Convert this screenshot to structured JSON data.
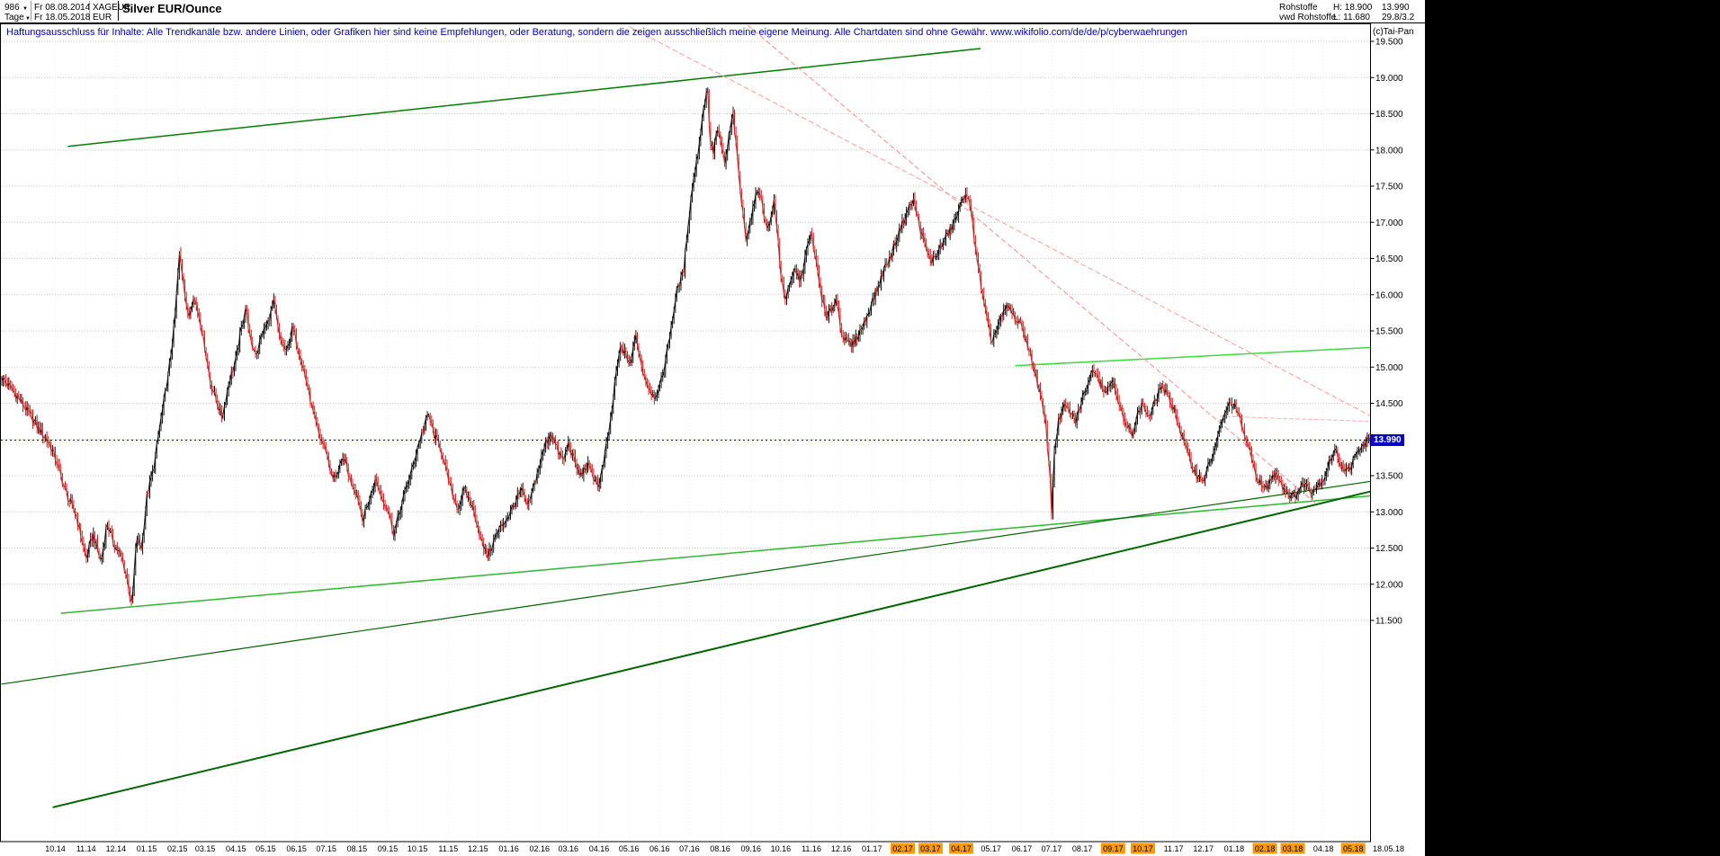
{
  "header": {
    "bars_count": "986",
    "start_date": "Fr 08.08.2014",
    "symbol": "XAGEUR",
    "title": "Silver EUR/Ounce",
    "period": "Tage",
    "end_date": "Fr 18.05.2018",
    "currency": "EUR",
    "quote": {
      "category": "Rohstoffe",
      "source": "vwd Rohstoffe",
      "high": "H: 18.900",
      "low": "L: 11.680",
      "last": "13.990",
      "extra": "29.8/3.2"
    }
  },
  "icons": {
    "dropdown": "▼"
  },
  "disclaimer": "Haftungsausschluss für Inhalte: Alle Trendkanäle bzw. andere Linien, oder Grafiken hier sind keine Empfehlungen, oder Beratung, sondern die zeigen ausschließlich meine eigene Meinung. Alle Chartdaten sind ohne Gewähr.  www.wikifolio.com/de/de/p/cyberwaehrungen",
  "copyright": "(c)Tai-Pan",
  "last_date_label": "18.05.18",
  "chart_data": {
    "type": "line",
    "subtype": "daily-ohlc-bars",
    "title": "Silver EUR/Ounce",
    "period": "Tage",
    "date_range": [
      "Fr 08.08.2014",
      "Fr 18.05.2018"
    ],
    "high": 18.9,
    "low": 11.68,
    "last": 13.99,
    "x_unit": "days since 2014-08-08",
    "ylabel": "EUR",
    "grid": true,
    "bar_colors": {
      "up": "#111111",
      "down": "#cc2222"
    },
    "y_axis": {
      "ticks": [
        {
          "label": "19.500",
          "value": 19.5
        },
        {
          "label": "19.000",
          "value": 19.0
        },
        {
          "label": "18.500",
          "value": 18.5
        },
        {
          "label": "18.000",
          "value": 18.0
        },
        {
          "label": "17.500",
          "value": 17.5
        },
        {
          "label": "17.000",
          "value": 17.0
        },
        {
          "label": "16.500",
          "value": 16.5
        },
        {
          "label": "16.000",
          "value": 16.0
        },
        {
          "label": "15.500",
          "value": 15.5
        },
        {
          "label": "15.000",
          "value": 15.0
        },
        {
          "label": "14.500",
          "value": 14.5
        },
        {
          "label": "14.000",
          "value": 14.0
        },
        {
          "label": "13.500",
          "value": 13.5
        },
        {
          "label": "13.000",
          "value": 13.0
        },
        {
          "label": "12.500",
          "value": 12.5
        },
        {
          "label": "12.000",
          "value": 12.0
        },
        {
          "label": "11.500",
          "value": 11.5
        }
      ]
    },
    "x_axis": {
      "highlight_color": "#ff9900",
      "months": [
        {
          "label": "10.14",
          "day": 54
        },
        {
          "label": "11.14",
          "day": 85
        },
        {
          "label": "12.14",
          "day": 115
        },
        {
          "label": "01.15",
          "day": 146
        },
        {
          "label": "02.15",
          "day": 177
        },
        {
          "label": "03.15",
          "day": 205
        },
        {
          "label": "04.15",
          "day": 236
        },
        {
          "label": "05.15",
          "day": 266
        },
        {
          "label": "06.15",
          "day": 297
        },
        {
          "label": "07.15",
          "day": 327
        },
        {
          "label": "08.15",
          "day": 358
        },
        {
          "label": "09.15",
          "day": 389
        },
        {
          "label": "10.15",
          "day": 419
        },
        {
          "label": "11.15",
          "day": 450
        },
        {
          "label": "12.15",
          "day": 480
        },
        {
          "label": "01.16",
          "day": 511
        },
        {
          "label": "02.16",
          "day": 542
        },
        {
          "label": "03.16",
          "day": 571
        },
        {
          "label": "04.16",
          "day": 602
        },
        {
          "label": "05.16",
          "day": 632
        },
        {
          "label": "06.16",
          "day": 663
        },
        {
          "label": "07.16",
          "day": 693
        },
        {
          "label": "08.16",
          "day": 724
        },
        {
          "label": "09.16",
          "day": 755
        },
        {
          "label": "10.16",
          "day": 785
        },
        {
          "label": "11.16",
          "day": 816
        },
        {
          "label": "12.16",
          "day": 846
        },
        {
          "label": "01.17",
          "day": 877
        },
        {
          "label": "02.17",
          "day": 908,
          "highlight": true
        },
        {
          "label": "03.17",
          "day": 936,
          "highlight": true
        },
        {
          "label": "04.17",
          "day": 967,
          "highlight": true
        },
        {
          "label": "05.17",
          "day": 997
        },
        {
          "label": "06.17",
          "day": 1028
        },
        {
          "label": "07.17",
          "day": 1058
        },
        {
          "label": "08.17",
          "day": 1089
        },
        {
          "label": "09.17",
          "day": 1120,
          "highlight": true
        },
        {
          "label": "10.17",
          "day": 1150,
          "highlight": true
        },
        {
          "label": "11.17",
          "day": 1181
        },
        {
          "label": "12.17",
          "day": 1211
        },
        {
          "label": "01.18",
          "day": 1242
        },
        {
          "label": "02.18",
          "day": 1273,
          "highlight": true
        },
        {
          "label": "03.18",
          "day": 1301,
          "highlight": true
        },
        {
          "label": "04.18",
          "day": 1332
        },
        {
          "label": "05.18",
          "day": 1362,
          "highlight": true
        }
      ]
    },
    "hline": {
      "price": 13.99,
      "label": "13.990",
      "color": "#0000cc"
    },
    "trendlines": [
      {
        "name": "upper-channel-trendline",
        "from": [
          67,
          18.05
        ],
        "to": [
          986,
          19.4
        ],
        "color": "#008000",
        "width": 1.5
      },
      {
        "name": "lower-channel-trendline",
        "from": [
          60,
          11.6
        ],
        "to": [
          1379,
          13.22
        ],
        "color": "#2eb82e",
        "width": 1.5
      },
      {
        "name": "long-support-trendline",
        "from": [
          52,
          8.92
        ],
        "to": [
          1379,
          13.28
        ],
        "color": "#006600",
        "width": 2
      },
      {
        "name": "secondary-support-trendline",
        "from": [
          0,
          10.62
        ],
        "to": [
          1379,
          13.42
        ],
        "color": "#006600",
        "width": 1.2
      },
      {
        "name": "right-resistance-trendline",
        "from": [
          1022,
          15.02
        ],
        "to": [
          1379,
          15.27
        ],
        "color": "#3ddc3d",
        "width": 1.5
      },
      {
        "name": "downtrend-dashed-line-1",
        "from": [
          633,
          19.7
        ],
        "to": [
          1379,
          14.33
        ],
        "color": "#ff9a9a",
        "width": 1,
        "dash": "5 4"
      },
      {
        "name": "downtrend-dashed-line-2",
        "from": [
          752,
          19.72
        ],
        "to": [
          1325,
          13.11
        ],
        "color": "#ff8a8a",
        "width": 1,
        "dash": "5 4"
      },
      {
        "name": "short-dashed-resistance",
        "from": [
          1228,
          14.32
        ],
        "to": [
          1379,
          14.25
        ],
        "color": "#ffb0b0",
        "width": 1,
        "dash": "4 3"
      }
    ],
    "path": [
      [
        0,
        14.85
      ],
      [
        10,
        14.7
      ],
      [
        18,
        14.55
      ],
      [
        28,
        14.35
      ],
      [
        37,
        14.15
      ],
      [
        48,
        13.95
      ],
      [
        55,
        13.7
      ],
      [
        65,
        13.25
      ],
      [
        75,
        12.95
      ],
      [
        85,
        12.35
      ],
      [
        92,
        12.7
      ],
      [
        100,
        12.3
      ],
      [
        106,
        12.85
      ],
      [
        113,
        12.55
      ],
      [
        120,
        12.4
      ],
      [
        126,
        12.1
      ],
      [
        131,
        11.68
      ],
      [
        136,
        12.65
      ],
      [
        141,
        12.5
      ],
      [
        146,
        13.2
      ],
      [
        153,
        13.6
      ],
      [
        160,
        14.25
      ],
      [
        168,
        14.9
      ],
      [
        174,
        15.6
      ],
      [
        179,
        16.55
      ],
      [
        184,
        16.1
      ],
      [
        188,
        15.65
      ],
      [
        193,
        16.0
      ],
      [
        199,
        15.7
      ],
      [
        205,
        15.25
      ],
      [
        210,
        14.8
      ],
      [
        216,
        14.55
      ],
      [
        222,
        14.3
      ],
      [
        229,
        14.8
      ],
      [
        236,
        15.1
      ],
      [
        241,
        15.5
      ],
      [
        246,
        15.85
      ],
      [
        251,
        15.3
      ],
      [
        257,
        15.2
      ],
      [
        262,
        15.45
      ],
      [
        268,
        15.6
      ],
      [
        274,
        15.9
      ],
      [
        280,
        15.4
      ],
      [
        287,
        15.2
      ],
      [
        293,
        15.55
      ],
      [
        300,
        15.2
      ],
      [
        307,
        14.8
      ],
      [
        314,
        14.35
      ],
      [
        320,
        14.05
      ],
      [
        327,
        13.85
      ],
      [
        333,
        13.45
      ],
      [
        339,
        13.55
      ],
      [
        345,
        13.75
      ],
      [
        351,
        13.45
      ],
      [
        358,
        13.25
      ],
      [
        364,
        12.9
      ],
      [
        370,
        13.15
      ],
      [
        377,
        13.45
      ],
      [
        383,
        13.2
      ],
      [
        389,
        13.05
      ],
      [
        395,
        12.7
      ],
      [
        401,
        13.0
      ],
      [
        408,
        13.35
      ],
      [
        414,
        13.6
      ],
      [
        419,
        13.9
      ],
      [
        425,
        14.15
      ],
      [
        430,
        14.35
      ],
      [
        436,
        14.05
      ],
      [
        442,
        13.9
      ],
      [
        448,
        13.55
      ],
      [
        454,
        13.25
      ],
      [
        460,
        13.05
      ],
      [
        466,
        13.3
      ],
      [
        472,
        13.15
      ],
      [
        478,
        12.9
      ],
      [
        484,
        12.55
      ],
      [
        490,
        12.4
      ],
      [
        496,
        12.6
      ],
      [
        503,
        12.8
      ],
      [
        511,
        12.95
      ],
      [
        518,
        13.15
      ],
      [
        524,
        13.3
      ],
      [
        530,
        13.05
      ],
      [
        536,
        13.35
      ],
      [
        542,
        13.65
      ],
      [
        548,
        13.95
      ],
      [
        554,
        14.1
      ],
      [
        560,
        13.85
      ],
      [
        566,
        13.7
      ],
      [
        571,
        13.95
      ],
      [
        577,
        13.7
      ],
      [
        583,
        13.5
      ],
      [
        590,
        13.65
      ],
      [
        596,
        13.5
      ],
      [
        602,
        13.35
      ],
      [
        608,
        13.8
      ],
      [
        614,
        14.3
      ],
      [
        619,
        14.9
      ],
      [
        624,
        15.3
      ],
      [
        629,
        15.15
      ],
      [
        634,
        15.05
      ],
      [
        639,
        15.45
      ],
      [
        645,
        15.0
      ],
      [
        651,
        14.75
      ],
      [
        657,
        14.6
      ],
      [
        663,
        14.7
      ],
      [
        669,
        15.1
      ],
      [
        675,
        15.6
      ],
      [
        681,
        16.1
      ],
      [
        687,
        16.3
      ],
      [
        691,
        16.9
      ],
      [
        696,
        17.5
      ],
      [
        701,
        17.9
      ],
      [
        706,
        18.45
      ],
      [
        711,
        18.9
      ],
      [
        714,
        18.1
      ],
      [
        717,
        17.95
      ],
      [
        721,
        18.3
      ],
      [
        725,
        18.05
      ],
      [
        729,
        17.8
      ],
      [
        733,
        18.2
      ],
      [
        737,
        18.5
      ],
      [
        741,
        17.9
      ],
      [
        746,
        17.2
      ],
      [
        750,
        16.8
      ],
      [
        755,
        17.05
      ],
      [
        759,
        17.3
      ],
      [
        763,
        17.5
      ],
      [
        768,
        17.1
      ],
      [
        773,
        16.9
      ],
      [
        778,
        17.3
      ],
      [
        782,
        16.8
      ],
      [
        785,
        16.3
      ],
      [
        789,
        15.95
      ],
      [
        794,
        16.1
      ],
      [
        799,
        16.35
      ],
      [
        805,
        16.2
      ],
      [
        810,
        16.55
      ],
      [
        816,
        16.85
      ],
      [
        821,
        16.4
      ],
      [
        826,
        16.0
      ],
      [
        831,
        15.65
      ],
      [
        836,
        15.8
      ],
      [
        841,
        15.95
      ],
      [
        846,
        15.5
      ],
      [
        851,
        15.35
      ],
      [
        857,
        15.3
      ],
      [
        863,
        15.45
      ],
      [
        869,
        15.6
      ],
      [
        877,
        15.9
      ],
      [
        883,
        16.1
      ],
      [
        889,
        16.35
      ],
      [
        895,
        16.5
      ],
      [
        901,
        16.75
      ],
      [
        908,
        17.0
      ],
      [
        914,
        17.2
      ],
      [
        919,
        17.3
      ],
      [
        924,
        17.0
      ],
      [
        930,
        16.7
      ],
      [
        936,
        16.45
      ],
      [
        942,
        16.55
      ],
      [
        948,
        16.7
      ],
      [
        954,
        16.85
      ],
      [
        960,
        17.0
      ],
      [
        967,
        17.25
      ],
      [
        972,
        17.45
      ],
      [
        977,
        17.1
      ],
      [
        982,
        16.6
      ],
      [
        987,
        16.1
      ],
      [
        992,
        15.7
      ],
      [
        997,
        15.35
      ],
      [
        1002,
        15.5
      ],
      [
        1008,
        15.7
      ],
      [
        1014,
        15.85
      ],
      [
        1020,
        15.7
      ],
      [
        1028,
        15.55
      ],
      [
        1034,
        15.3
      ],
      [
        1040,
        15.0
      ],
      [
        1046,
        14.65
      ],
      [
        1052,
        14.2
      ],
      [
        1056,
        13.6
      ],
      [
        1058,
        12.95
      ],
      [
        1061,
        13.9
      ],
      [
        1065,
        14.25
      ],
      [
        1070,
        14.45
      ],
      [
        1076,
        14.4
      ],
      [
        1082,
        14.25
      ],
      [
        1089,
        14.55
      ],
      [
        1095,
        14.8
      ],
      [
        1101,
        15.0
      ],
      [
        1107,
        14.8
      ],
      [
        1113,
        14.65
      ],
      [
        1120,
        14.85
      ],
      [
        1126,
        14.5
      ],
      [
        1132,
        14.2
      ],
      [
        1139,
        14.1
      ],
      [
        1145,
        14.35
      ],
      [
        1150,
        14.5
      ],
      [
        1156,
        14.3
      ],
      [
        1162,
        14.5
      ],
      [
        1168,
        14.75
      ],
      [
        1175,
        14.6
      ],
      [
        1181,
        14.45
      ],
      [
        1187,
        14.15
      ],
      [
        1193,
        13.9
      ],
      [
        1199,
        13.65
      ],
      [
        1205,
        13.5
      ],
      [
        1211,
        13.45
      ],
      [
        1217,
        13.65
      ],
      [
        1223,
        13.9
      ],
      [
        1229,
        14.2
      ],
      [
        1235,
        14.45
      ],
      [
        1242,
        14.5
      ],
      [
        1248,
        14.25
      ],
      [
        1254,
        14.0
      ],
      [
        1260,
        13.7
      ],
      [
        1266,
        13.45
      ],
      [
        1273,
        13.3
      ],
      [
        1279,
        13.45
      ],
      [
        1285,
        13.55
      ],
      [
        1291,
        13.35
      ],
      [
        1297,
        13.25
      ],
      [
        1301,
        13.2
      ],
      [
        1307,
        13.3
      ],
      [
        1313,
        13.4
      ],
      [
        1319,
        13.3
      ],
      [
        1325,
        13.35
      ],
      [
        1332,
        13.45
      ],
      [
        1338,
        13.7
      ],
      [
        1344,
        13.85
      ],
      [
        1350,
        13.65
      ],
      [
        1356,
        13.55
      ],
      [
        1362,
        13.7
      ],
      [
        1368,
        13.85
      ],
      [
        1374,
        13.95
      ],
      [
        1379,
        13.99
      ]
    ]
  }
}
